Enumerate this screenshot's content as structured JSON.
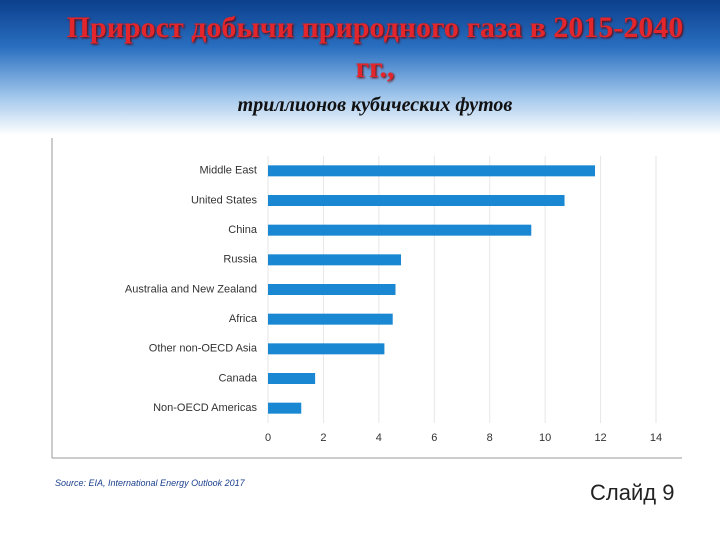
{
  "chart_data": {
    "type": "bar",
    "orientation": "horizontal",
    "title": "Прирост добычи природного газа в 2015-2040 гг.,",
    "subtitle": "триллионов кубических футов",
    "categories": [
      "Middle East",
      "United States",
      "China",
      "Russia",
      "Australia and New Zealand",
      "Africa",
      "Other non-OECD Asia",
      "Canada",
      "Non-OECD Americas"
    ],
    "values": [
      11.8,
      10.7,
      9.5,
      4.8,
      4.6,
      4.5,
      4.2,
      1.7,
      1.2
    ],
    "color": "#1a87d2",
    "xlim": [
      0,
      14
    ],
    "xticks": [
      0,
      2,
      4,
      6,
      8,
      10,
      12,
      14
    ],
    "grid": true,
    "source": "Source: EIA, International Energy Outlook 2017"
  },
  "slide_label": "Слайд 9"
}
